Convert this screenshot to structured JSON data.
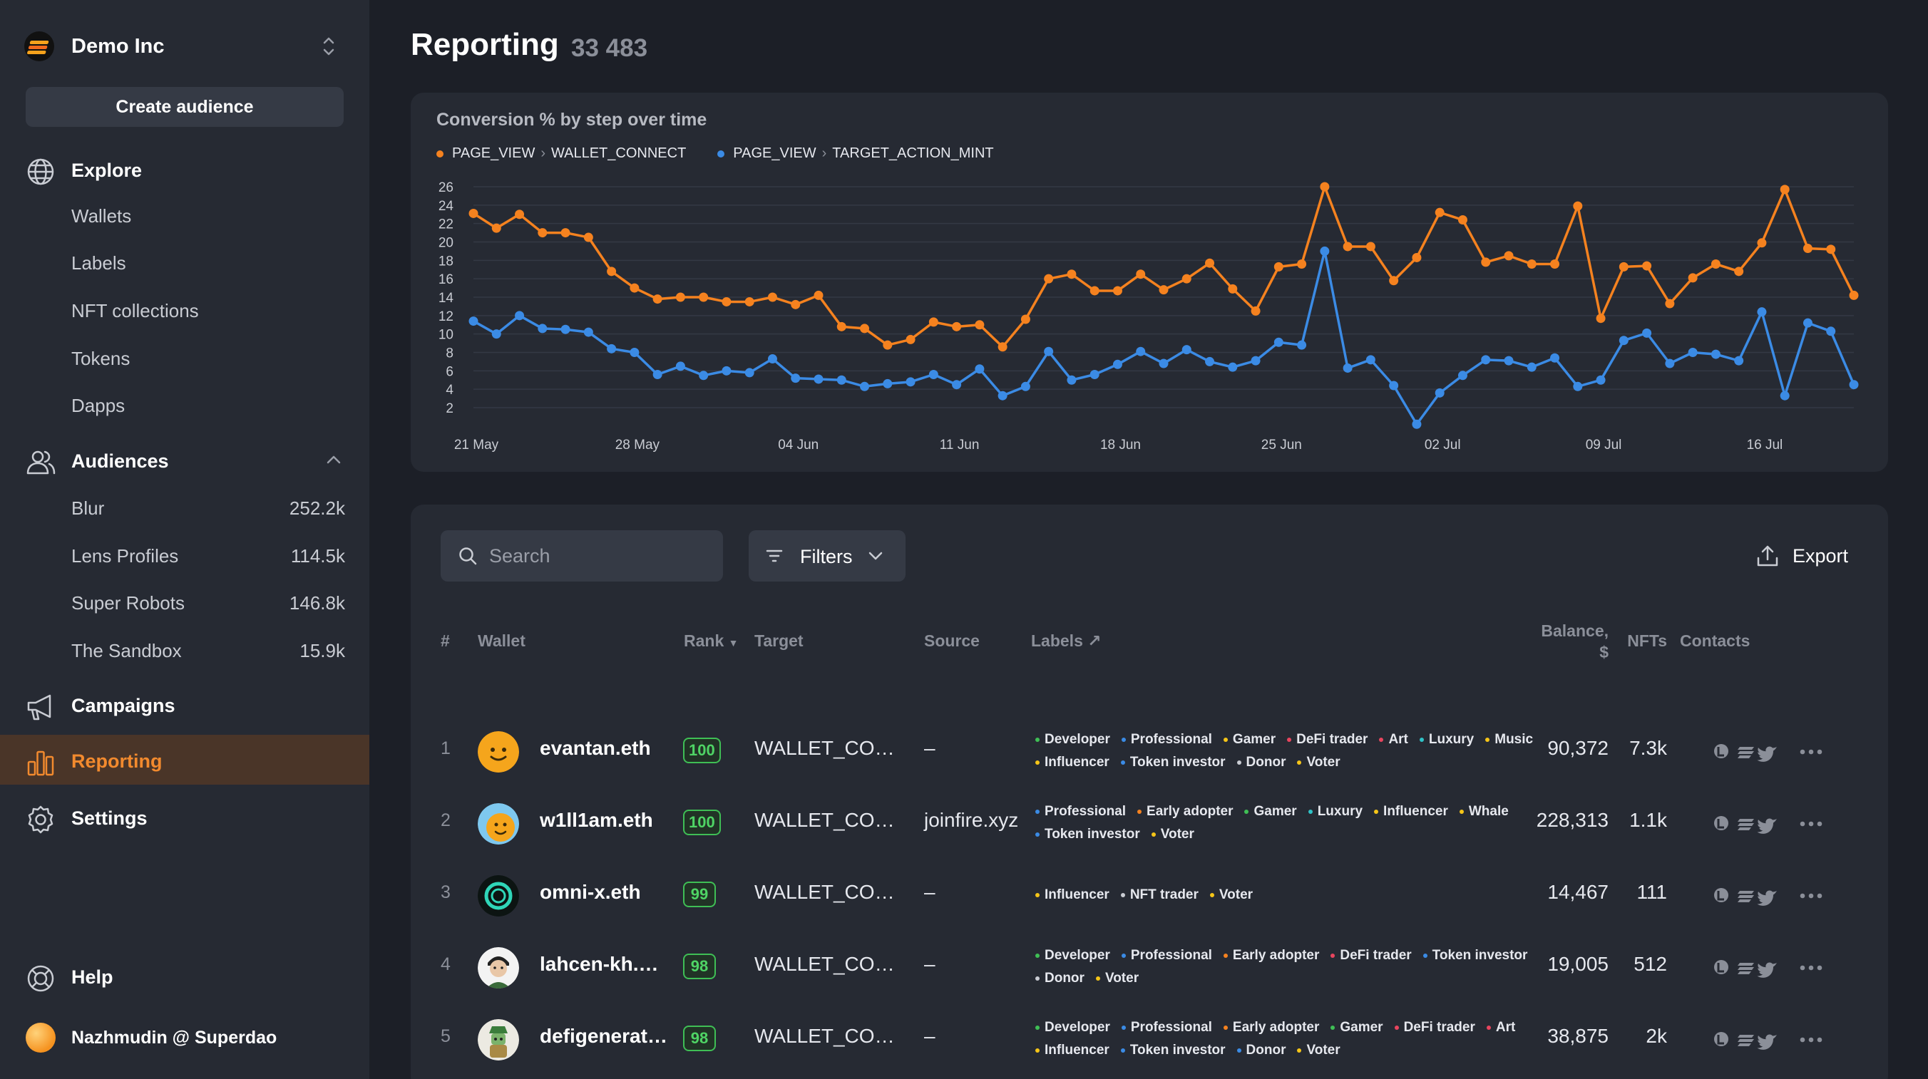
{
  "sidebar": {
    "org_name": "Demo Inc",
    "create_label": "Create audience",
    "explore": {
      "label": "Explore",
      "items": [
        "Wallets",
        "Labels",
        "NFT collections",
        "Tokens",
        "Dapps"
      ]
    },
    "audiences": {
      "label": "Audiences",
      "items": [
        {
          "label": "Blur",
          "count": "252.2k"
        },
        {
          "label": "Lens Profiles",
          "count": "114.5k"
        },
        {
          "label": "Super Robots",
          "count": "146.8k"
        },
        {
          "label": "The Sandbox",
          "count": "15.9k"
        }
      ]
    },
    "campaigns": "Campaigns",
    "reporting": "Reporting",
    "settings": "Settings",
    "help": "Help",
    "user": "Nazhmudin @ Superdao"
  },
  "header": {
    "title": "Reporting",
    "count": "33 483"
  },
  "chart_data": {
    "type": "line",
    "title": "Conversion % by step over time",
    "ylim": [
      0,
      26
    ],
    "yticks": [
      "2",
      "4",
      "6",
      "8",
      "10",
      "12",
      "14",
      "16",
      "18",
      "20",
      "22",
      "24",
      "26"
    ],
    "xticks": [
      {
        "label": "21 May",
        "i": 0
      },
      {
        "label": "28 May",
        "i": 7
      },
      {
        "label": "04 Jun",
        "i": 14
      },
      {
        "label": "11 Jun",
        "i": 21
      },
      {
        "label": "18 Jun",
        "i": 28
      },
      {
        "label": "25 Jun",
        "i": 35
      },
      {
        "label": "02 Jul",
        "i": 42
      },
      {
        "label": "09 Jul",
        "i": 49
      },
      {
        "label": "16 Jul",
        "i": 56
      }
    ],
    "grid": true,
    "legend_position": "top-left",
    "series": [
      {
        "name_parts": [
          "PAGE_VIEW",
          "WALLET_CONNECT"
        ],
        "color": "#f5821f",
        "values": [
          23.1,
          21.5,
          23,
          21,
          21,
          20.5,
          16.8,
          15,
          13.8,
          14,
          14,
          13.5,
          13.5,
          14,
          13.2,
          14.2,
          10.8,
          10.6,
          8.8,
          9.4,
          11.3,
          10.8,
          11,
          8.6,
          11.6,
          16,
          16.5,
          14.7,
          14.7,
          16.5,
          14.8,
          16,
          17.7,
          14.9,
          12.5,
          17.3,
          17.6,
          26,
          19.5,
          19.5,
          15.8,
          18.3,
          23.2,
          22.4,
          17.8,
          18.5,
          17.6,
          17.6,
          23.9,
          11.7,
          17.3,
          17.4,
          13.3,
          16.1,
          17.6,
          16.8,
          19.9,
          25.7,
          19.3,
          19.2,
          14.2
        ]
      },
      {
        "name_parts": [
          "PAGE_VIEW",
          "TARGET_ACTION_MINT"
        ],
        "color": "#3b8be5",
        "values": [
          11.4,
          10,
          12,
          10.6,
          10.5,
          10.2,
          8.4,
          8,
          5.6,
          6.5,
          5.5,
          6,
          5.8,
          7.3,
          5.2,
          5.1,
          5,
          4.3,
          4.6,
          4.8,
          5.6,
          4.5,
          6.2,
          3.3,
          4.3,
          8.1,
          5,
          5.6,
          6.7,
          8.1,
          6.8,
          8.3,
          7,
          6.4,
          7.1,
          9.1,
          8.8,
          19,
          6.3,
          7.2,
          4.4,
          0.2,
          3.6,
          5.5,
          7.2,
          7.1,
          6.4,
          7.4,
          4.3,
          5,
          9.3,
          10.1,
          6.8,
          8,
          7.8,
          7.1,
          12.4,
          3.3,
          11.2,
          10.3,
          4.5
        ]
      }
    ]
  },
  "table": {
    "search_placeholder": "Search",
    "filters_label": "Filters",
    "export_label": "Export",
    "headers": {
      "num": "#",
      "wallet": "Wallet",
      "rank": "Rank",
      "target": "Target",
      "source": "Source",
      "labels": "Labels",
      "balance_1": "Balance,",
      "balance_2": "$",
      "nfts": "NFTs",
      "contacts": "Contacts"
    },
    "rows": [
      {
        "num": "1",
        "wallet": "evantan.eth",
        "rank": "100",
        "target": "WALLET_CONNECT",
        "source": "–",
        "balance": "90,372",
        "nfts": "7.3k",
        "avatar": "smiley-yellow",
        "labels": [
          {
            "t": "Developer",
            "c": "#3fbf55"
          },
          {
            "t": "Professional",
            "c": "#3b8be5"
          },
          {
            "t": "Gamer",
            "c": "#f5c518"
          },
          {
            "t": "DeFi trader",
            "c": "#e8455e"
          },
          {
            "t": "Art",
            "c": "#e8455e"
          },
          {
            "t": "Luxury",
            "c": "#2fc2c7"
          },
          {
            "t": "Music",
            "c": "#f5c518"
          },
          {
            "t": "Influencer",
            "c": "#f5c518"
          },
          {
            "t": "Token investor",
            "c": "#3b8be5"
          },
          {
            "t": "Donor",
            "c": "#c9ccd3"
          },
          {
            "t": "Voter",
            "c": "#f5c518"
          }
        ]
      },
      {
        "num": "2",
        "wallet": "w1ll1am.eth",
        "rank": "100",
        "target": "WALLET_CONNECT",
        "source": "joinfire.xyz",
        "balance": "228,313",
        "nfts": "1.1k",
        "avatar": "smiley-blue",
        "labels": [
          {
            "t": "Professional",
            "c": "#3b8be5"
          },
          {
            "t": "Early adopter",
            "c": "#f5821f"
          },
          {
            "t": "Gamer",
            "c": "#3fbf55"
          },
          {
            "t": "Luxury",
            "c": "#2fc2c7"
          },
          {
            "t": "Influencer",
            "c": "#f5c518"
          },
          {
            "t": "Whale",
            "c": "#f5c518"
          },
          {
            "t": "Token investor",
            "c": "#3b8be5"
          },
          {
            "t": "Voter",
            "c": "#f5c518"
          }
        ]
      },
      {
        "num": "3",
        "wallet": "omni-x.eth",
        "rank": "99",
        "target": "WALLET_CONNECT",
        "source": "–",
        "balance": "14,467",
        "nfts": "111",
        "avatar": "ring",
        "labels": [
          {
            "t": "Influencer",
            "c": "#f5c518"
          },
          {
            "t": "NFT trader",
            "c": "#c9ccd3"
          },
          {
            "t": "Voter",
            "c": "#f5c518"
          }
        ]
      },
      {
        "num": "4",
        "wallet": "lahcen-kh.eth",
        "rank": "98",
        "target": "WALLET_CONNECT",
        "source": "–",
        "balance": "19,005",
        "nfts": "512",
        "avatar": "person",
        "labels": [
          {
            "t": "Developer",
            "c": "#3fbf55"
          },
          {
            "t": "Professional",
            "c": "#3b8be5"
          },
          {
            "t": "Early adopter",
            "c": "#f5821f"
          },
          {
            "t": "DeFi trader",
            "c": "#e8455e"
          },
          {
            "t": "Token investor",
            "c": "#3b8be5"
          },
          {
            "t": "Donor",
            "c": "#c9ccd3"
          },
          {
            "t": "Voter",
            "c": "#f5c518"
          }
        ]
      },
      {
        "num": "5",
        "wallet": "defigenerator.eth",
        "rank": "98",
        "target": "WALLET_CONNECT",
        "source": "–",
        "balance": "38,875",
        "nfts": "2k",
        "avatar": "robot",
        "labels": [
          {
            "t": "Developer",
            "c": "#3fbf55"
          },
          {
            "t": "Professional",
            "c": "#3b8be5"
          },
          {
            "t": "Early adopter",
            "c": "#f5821f"
          },
          {
            "t": "Gamer",
            "c": "#3fbf55"
          },
          {
            "t": "DeFi trader",
            "c": "#e8455e"
          },
          {
            "t": "Art",
            "c": "#e8455e"
          },
          {
            "t": "Influencer",
            "c": "#f5c518"
          },
          {
            "t": "Token investor",
            "c": "#3b8be5"
          },
          {
            "t": "Donor",
            "c": "#3b8be5"
          },
          {
            "t": "Voter",
            "c": "#f5c518"
          }
        ]
      }
    ]
  }
}
